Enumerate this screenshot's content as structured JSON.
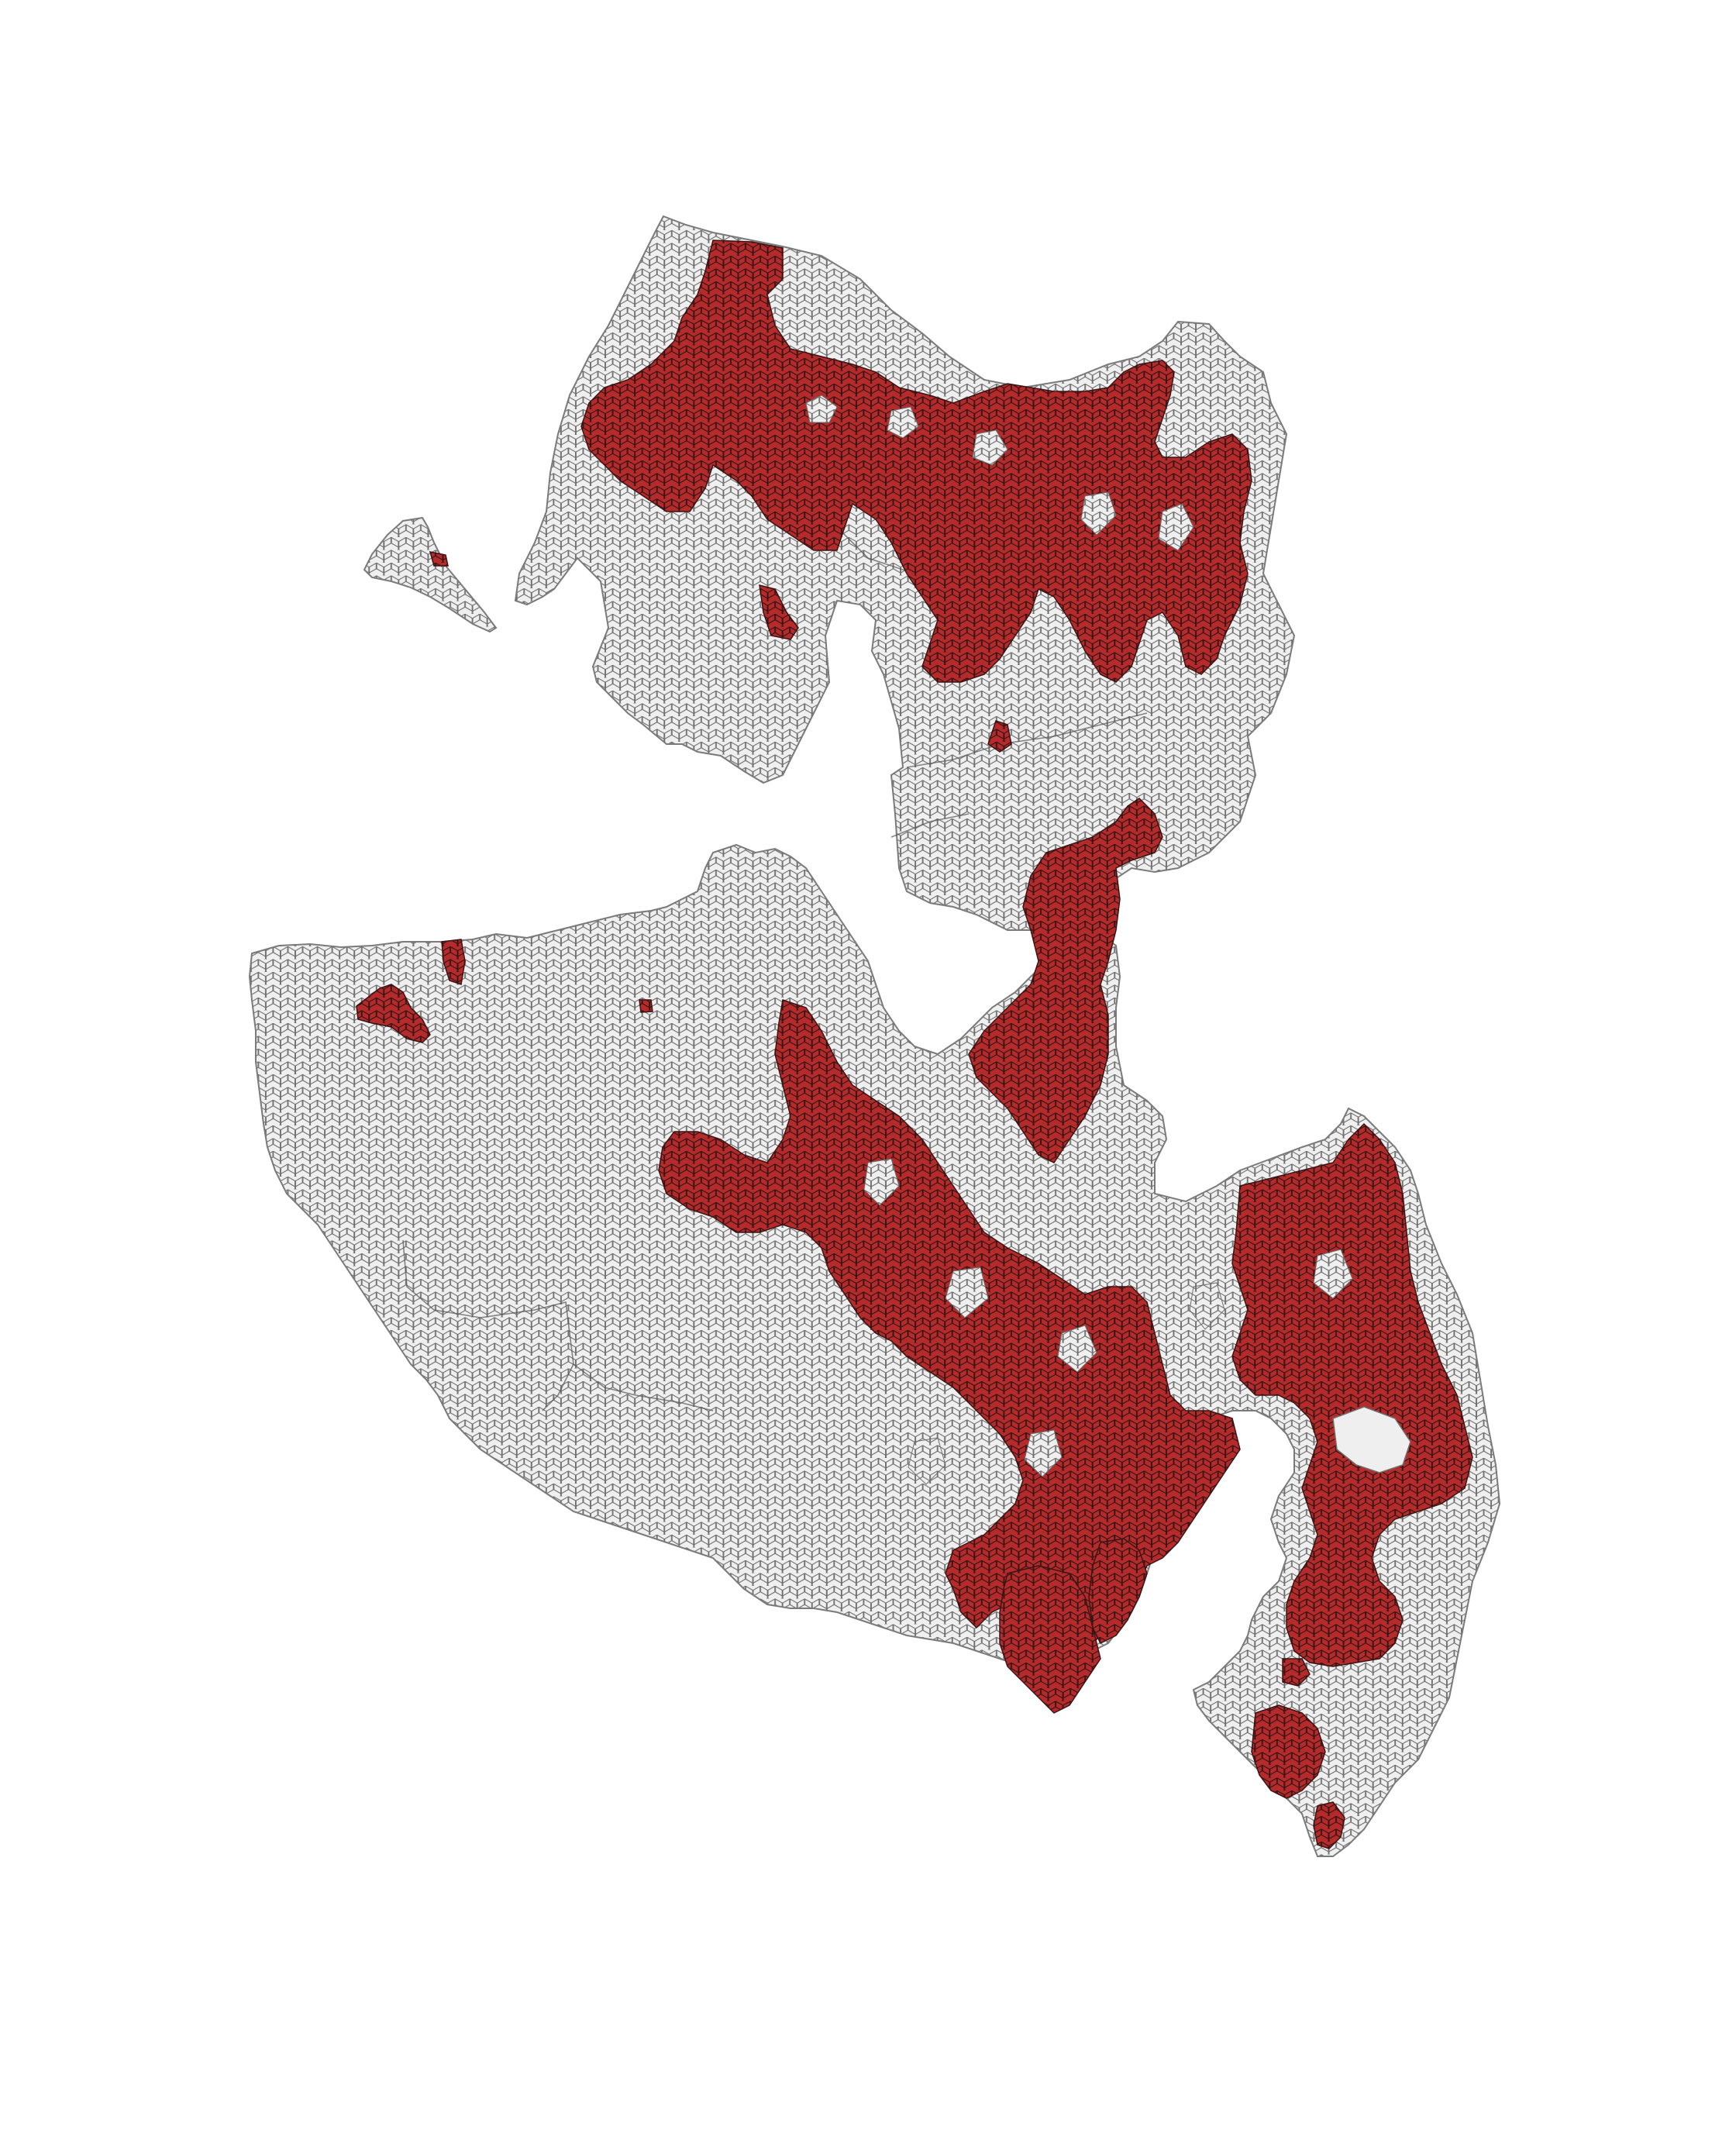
{
  "map": {
    "type": "hexbin-choropleth",
    "background": "#ffffff",
    "colors": {
      "highlighted_fill": "#b52b2b",
      "highlighted_stroke": "#3a1414",
      "base_fill": "#eeeeee",
      "base_stroke": "#6f6f6f",
      "outline": "#7a7a7a"
    },
    "classes": [
      "highlighted",
      "base"
    ],
    "legend": null,
    "title": ""
  }
}
